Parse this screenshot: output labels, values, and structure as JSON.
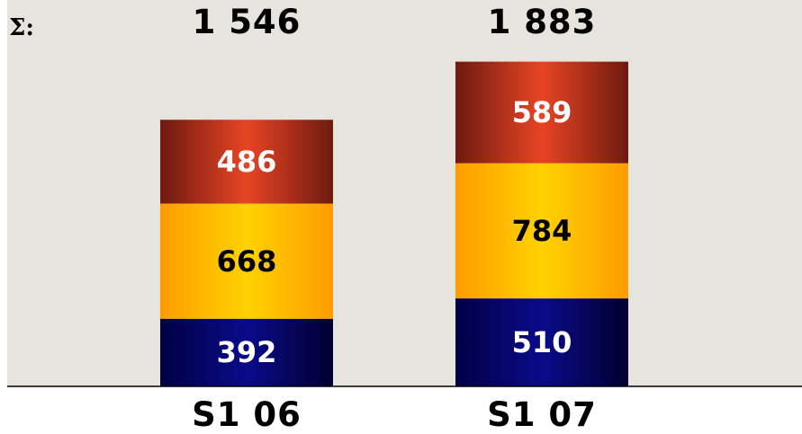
{
  "chart_data": {
    "type": "bar",
    "stacked": true,
    "total_prefix": "Σ:",
    "categories": [
      "S1 06",
      "S1 07"
    ],
    "totals": [
      "1 546",
      "1 883"
    ],
    "series": [
      {
        "values": [
          392,
          510
        ],
        "color": "#000066",
        "label_color": "#ffffff"
      },
      {
        "values": [
          668,
          784
        ],
        "color": "#ffc000",
        "label_color": "#000000"
      },
      {
        "values": [
          486,
          589
        ],
        "color": "#d84020",
        "label_color": "#ffffff"
      }
    ],
    "ylim": [
      0,
      1980
    ],
    "grid": false,
    "legend": "none"
  }
}
